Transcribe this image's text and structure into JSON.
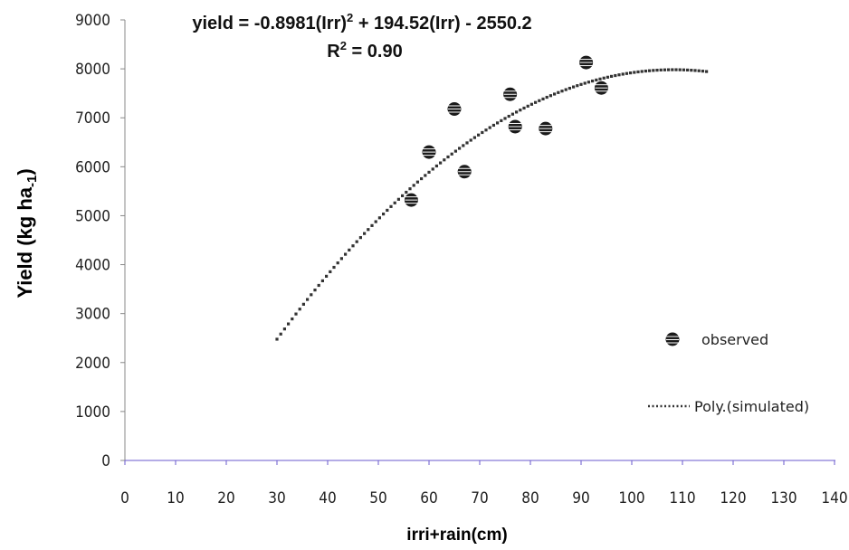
{
  "chart_data": {
    "type": "scatter",
    "equation": "yield = -0.8981(Irr)",
    "equation_sup": "2",
    "equation_rest": " + 194.52(Irr) - 2550.2",
    "r2_label": "R",
    "r2_sup": "2",
    "r2_value": " = 0.90",
    "xlabel": "irri+rain(cm)",
    "ylabel": "Yield (kg ha",
    "ylabel_sub": "-1",
    "ylabel_close": ")",
    "xlim": [
      0,
      140
    ],
    "ylim": [
      0,
      9000
    ],
    "x_ticks": [
      "0",
      "10",
      "20",
      "30",
      "40",
      "50",
      "60",
      "70",
      "80",
      "90",
      "100",
      "110",
      "120",
      "130",
      "140"
    ],
    "y_ticks": [
      "0",
      "1000",
      "2000",
      "3000",
      "4000",
      "5000",
      "6000",
      "7000",
      "8000",
      "9000"
    ],
    "grid": false,
    "legend_position": "right",
    "series": [
      {
        "name": "observed",
        "marker": "circle",
        "color": "#1a1a1a",
        "points": [
          {
            "x": 56.5,
            "y": 5320
          },
          {
            "x": 60,
            "y": 6300
          },
          {
            "x": 65,
            "y": 7180
          },
          {
            "x": 67,
            "y": 5900
          },
          {
            "x": 76,
            "y": 7480
          },
          {
            "x": 77,
            "y": 6820
          },
          {
            "x": 83,
            "y": 6780
          },
          {
            "x": 91,
            "y": 8130
          },
          {
            "x": 94,
            "y": 7610
          }
        ]
      },
      {
        "name": "Poly.(simulated)",
        "type": "dotted-line",
        "color": "#333333",
        "coefficients": {
          "a": -0.8981,
          "b": 194.52,
          "c": -2550.2
        },
        "x_range": [
          30,
          115
        ]
      }
    ]
  }
}
